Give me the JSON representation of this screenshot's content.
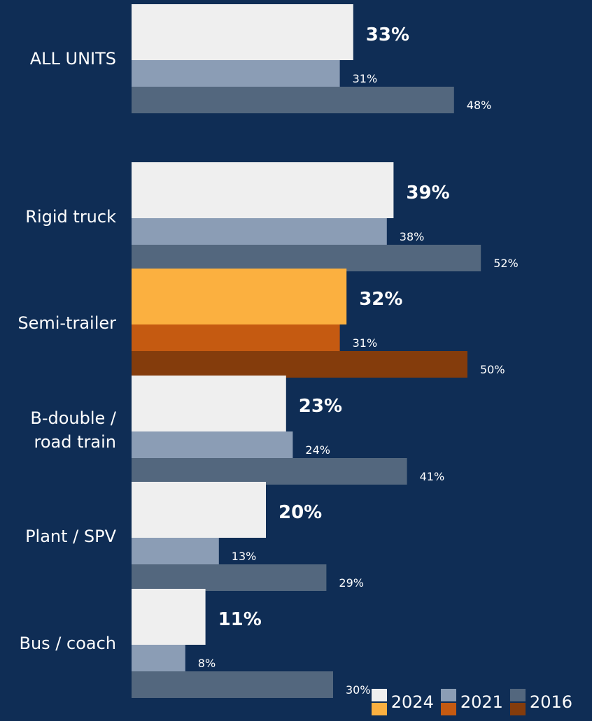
{
  "chart_data": {
    "type": "bar",
    "orientation": "horizontal",
    "categories": [
      "ALL UNITS",
      "Rigid truck",
      "Semi-trailer",
      "B-double / road train",
      "Plant / SPV",
      "Bus / coach"
    ],
    "category_lines": [
      [
        "ALL UNITS"
      ],
      [
        "Rigid truck"
      ],
      [
        "Semi-trailer"
      ],
      [
        "B-double /",
        "road train"
      ],
      [
        "Plant / SPV"
      ],
      [
        "Bus / coach"
      ]
    ],
    "series": [
      {
        "name": "2024",
        "values": [
          33,
          39,
          32,
          23,
          20,
          11
        ],
        "labels": [
          "33%",
          "39%",
          "32%",
          "23%",
          "20%",
          "11%"
        ],
        "color": "#efefef",
        "highlight_color": "#fbb040"
      },
      {
        "name": "2021",
        "values": [
          31,
          38,
          31,
          24,
          13,
          8
        ],
        "labels": [
          "31%",
          "38%",
          "31%",
          "24%",
          "13%",
          "8%"
        ],
        "color": "#8b9db5",
        "highlight_color": "#c55a11"
      },
      {
        "name": "2016",
        "values": [
          48,
          52,
          50,
          41,
          29,
          30
        ],
        "labels": [
          "48%",
          "52%",
          "50%",
          "41%",
          "29%",
          "30%"
        ],
        "color": "#53677e",
        "highlight_color": "#843c0c"
      }
    ],
    "highlight_category": "Semi-trailer",
    "background": "#0f2d55",
    "xlim": [
      0,
      60
    ],
    "grid": false,
    "legend_position": "bottom-right"
  },
  "legend": [
    {
      "label": "2024",
      "color": "#efefef",
      "highlight_color": "#fbb040"
    },
    {
      "label": "2021",
      "color": "#8b9db5",
      "highlight_color": "#c55a11"
    },
    {
      "label": "2016",
      "color": "#53677e",
      "highlight_color": "#843c0c"
    }
  ]
}
